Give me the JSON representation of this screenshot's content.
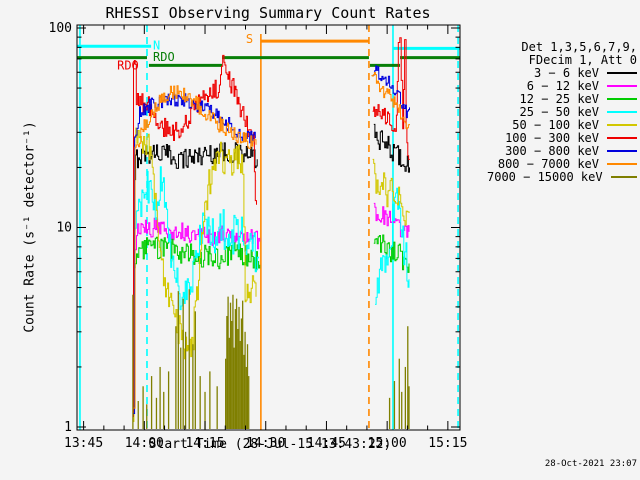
{
  "title": "RHESSI Observing Summary Count Rates",
  "timestamp": "28-Oct-2021 23:07",
  "axes": {
    "x": {
      "label": "Start Time (28-Jul-15 13:43:22)",
      "range_hours": [
        13.7228,
        15.3
      ],
      "ticks": [
        {
          "t": 13.75,
          "label": "13:45"
        },
        {
          "t": 14.0,
          "label": "14:00"
        },
        {
          "t": 14.25,
          "label": "14:15"
        },
        {
          "t": 14.5,
          "label": "14:30"
        },
        {
          "t": 14.75,
          "label": "14:45"
        },
        {
          "t": 15.0,
          "label": "15:00"
        },
        {
          "t": 15.25,
          "label": "15:15"
        }
      ],
      "minor_step_minutes": 5
    },
    "y": {
      "label": "Count Rate (s⁻¹ detector⁻¹)",
      "scale": "log",
      "range": [
        1,
        100
      ],
      "ticks": [
        {
          "v": 1,
          "label": "1"
        },
        {
          "v": 10,
          "label": "10"
        },
        {
          "v": 100,
          "label": "100"
        }
      ]
    }
  },
  "legend": {
    "header1": "Det 1,3,5,6,7,9,",
    "header2": "FDecim 1, Att 0",
    "entries": [
      {
        "label": "3 − 6 keV",
        "color": "#000000"
      },
      {
        "label": "6 − 12 keV",
        "color": "#ff00ff"
      },
      {
        "label": "12 − 25 keV",
        "color": "#00cc00"
      },
      {
        "label": "25 − 50 keV",
        "color": "#00ffff"
      },
      {
        "label": "50 − 100 keV",
        "color": "#d2c700"
      },
      {
        "label": "100 − 300 keV",
        "color": "#ee0000"
      },
      {
        "label": "300 − 800 keV",
        "color": "#0000dd"
      },
      {
        "label": "800 − 7000 keV",
        "color": "#ff8800"
      },
      {
        "label": "7000 − 15000 keV",
        "color": "#7f7f00"
      }
    ]
  },
  "chart_data": {
    "type": "line",
    "x_unit": "decimal_hours",
    "ylog": true,
    "grid": false,
    "series": [
      {
        "name": "3 − 6 keV",
        "color": "#000000",
        "jitter": 0.055,
        "segments": [
          [
            [
              13.955,
              1.5
            ],
            [
              13.958,
              16
            ],
            [
              13.964,
              22
            ],
            [
              13.98,
              23
            ],
            [
              14.05,
              24
            ],
            [
              14.15,
              22
            ],
            [
              14.22,
              23
            ],
            [
              14.32,
              24
            ],
            [
              14.42,
              23
            ],
            [
              14.465,
              22
            ]
          ],
          [
            [
              14.945,
              29
            ],
            [
              14.99,
              26
            ],
            [
              15.03,
              24
            ],
            [
              15.06,
              22
            ],
            [
              15.092,
              20
            ]
          ]
        ]
      },
      {
        "name": "6 − 12 keV",
        "color": "#ff00ff",
        "jitter": 0.05,
        "segments": [
          [
            [
              13.952,
              1.3
            ],
            [
              13.957,
              7.5
            ],
            [
              13.968,
              9.5
            ],
            [
              14.05,
              10
            ],
            [
              14.15,
              9.5
            ],
            [
              14.28,
              9
            ],
            [
              14.4,
              9.5
            ],
            [
              14.475,
              8.5
            ]
          ],
          [
            [
              14.945,
              12
            ],
            [
              15.0,
              11
            ],
            [
              15.05,
              10
            ],
            [
              15.09,
              9.5
            ]
          ]
        ]
      },
      {
        "name": "12 − 25 keV",
        "color": "#00cc00",
        "jitter": 0.06,
        "segments": [
          [
            [
              13.952,
              1.2
            ],
            [
              13.957,
              6
            ],
            [
              13.968,
              7.5
            ],
            [
              14.05,
              8
            ],
            [
              14.15,
              7.5
            ],
            [
              14.28,
              7
            ],
            [
              14.4,
              7.5
            ],
            [
              14.475,
              6.5
            ]
          ],
          [
            [
              14.945,
              8.5
            ],
            [
              15.0,
              7.8
            ],
            [
              15.05,
              7.2
            ],
            [
              15.09,
              6.6
            ]
          ]
        ]
      },
      {
        "name": "25 − 50 keV",
        "color": "#00ffff",
        "jitter": 0.1,
        "segments": [
          [
            [
              13.952,
              1.2
            ],
            [
              13.958,
              9
            ],
            [
              13.99,
              13
            ],
            [
              14.02,
              17
            ],
            [
              14.045,
              11
            ],
            [
              14.07,
              18
            ],
            [
              14.1,
              9
            ],
            [
              14.13,
              5.5
            ],
            [
              14.16,
              4.2
            ],
            [
              14.19,
              5
            ],
            [
              14.21,
              8
            ],
            [
              14.24,
              10
            ],
            [
              14.28,
              9
            ],
            [
              14.32,
              10
            ],
            [
              14.36,
              9
            ],
            [
              14.4,
              10
            ],
            [
              14.44,
              8
            ],
            [
              14.47,
              7
            ]
          ],
          [
            [
              14.95,
              5
            ],
            [
              15.0,
              7
            ],
            [
              15.035,
              14
            ],
            [
              15.06,
              9
            ],
            [
              15.09,
              5.5
            ]
          ]
        ]
      },
      {
        "name": "50 − 100 keV",
        "color": "#d2c700",
        "jitter": 0.09,
        "segments": [
          [
            [
              13.953,
              1.3
            ],
            [
              13.957,
              21
            ],
            [
              13.965,
              26
            ],
            [
              14.02,
              25
            ],
            [
              14.045,
              14
            ],
            [
              14.07,
              6.5
            ],
            [
              14.1,
              4.5
            ],
            [
              14.13,
              3.4
            ],
            [
              14.17,
              2.5
            ],
            [
              14.195,
              2.4
            ],
            [
              14.215,
              4.5
            ],
            [
              14.24,
              9
            ],
            [
              14.27,
              18
            ],
            [
              14.3,
              22
            ],
            [
              14.36,
              22
            ],
            [
              14.405,
              21
            ],
            [
              14.415,
              4
            ],
            [
              14.44,
              5
            ],
            [
              14.46,
              4.5
            ]
          ],
          [
            [
              14.94,
              18
            ],
            [
              14.99,
              16
            ],
            [
              15.03,
              14
            ],
            [
              15.06,
              13
            ],
            [
              15.092,
              12
            ]
          ]
        ]
      },
      {
        "name": "100 − 300 keV",
        "color": "#ee0000",
        "jitter": 0.05,
        "segments": [
          [
            [
              13.954,
              1.2
            ],
            [
              13.9555,
              62
            ],
            [
              13.9625,
              68
            ],
            [
              13.967,
              45
            ],
            [
              13.99,
              42
            ],
            [
              14.03,
              40
            ],
            [
              14.07,
              32
            ],
            [
              14.12,
              30
            ],
            [
              14.16,
              31
            ],
            [
              14.2,
              40
            ],
            [
              14.26,
              46
            ],
            [
              14.305,
              50
            ],
            [
              14.318,
              66
            ],
            [
              14.328,
              68
            ],
            [
              14.34,
              58
            ],
            [
              14.365,
              50
            ],
            [
              14.39,
              42
            ],
            [
              14.41,
              35
            ],
            [
              14.43,
              30
            ],
            [
              14.45,
              27
            ],
            [
              14.457,
              14
            ],
            [
              14.462,
              13
            ]
          ],
          [
            [
              14.94,
              40
            ],
            [
              14.98,
              38
            ],
            [
              15.01,
              34
            ],
            [
              15.038,
              33
            ],
            [
              15.046,
              88
            ],
            [
              15.052,
              95
            ],
            [
              15.058,
              60
            ],
            [
              15.064,
              33
            ],
            [
              15.072,
              80
            ],
            [
              15.078,
              30
            ],
            [
              15.085,
              25
            ],
            [
              15.092,
              22
            ]
          ]
        ]
      },
      {
        "name": "300 − 800 keV",
        "color": "#0000dd",
        "jitter": 0.035,
        "segments": [
          [
            [
              13.9555,
              1.2
            ],
            [
              13.96,
              28
            ],
            [
              13.98,
              38
            ],
            [
              14.02,
              41
            ],
            [
              14.08,
              43
            ],
            [
              14.13,
              44
            ],
            [
              14.18,
              43
            ],
            [
              14.24,
              40
            ],
            [
              14.3,
              37
            ],
            [
              14.33,
              34
            ],
            [
              14.36,
              32
            ],
            [
              14.39,
              30
            ],
            [
              14.42,
              29
            ],
            [
              14.457,
              28
            ]
          ],
          [
            [
              14.94,
              62
            ],
            [
              14.97,
              58
            ],
            [
              15.0,
              54
            ],
            [
              15.02,
              50
            ],
            [
              15.04,
              46
            ],
            [
              15.06,
              42
            ],
            [
              15.075,
              38
            ],
            [
              15.092,
              40
            ]
          ]
        ]
      },
      {
        "name": "800 − 7000 keV",
        "color": "#ff8800",
        "jitter": 0.04,
        "segments": [
          [
            [
              13.956,
              1.2
            ],
            [
              13.962,
              24
            ],
            [
              13.99,
              30
            ],
            [
              14.03,
              38
            ],
            [
              14.08,
              46
            ],
            [
              14.13,
              48
            ],
            [
              14.18,
              46
            ],
            [
              14.23,
              40
            ],
            [
              14.28,
              35
            ],
            [
              14.32,
              32
            ],
            [
              14.36,
              30
            ],
            [
              14.4,
              28
            ],
            [
              14.43,
              27
            ],
            [
              14.46,
              26
            ]
          ],
          [
            [
              14.935,
              58
            ],
            [
              14.96,
              54
            ],
            [
              14.99,
              48
            ],
            [
              15.02,
              43
            ],
            [
              15.05,
              38
            ],
            [
              15.07,
              34
            ],
            [
              15.092,
              33
            ]
          ]
        ]
      },
      {
        "name": "7000 − 15000 keV",
        "color": "#7f7f00",
        "mode": "spikes",
        "spikes": [
          [
            13.953,
            4.6
          ],
          [
            13.975,
            1.35
          ],
          [
            13.995,
            1.6
          ],
          [
            14.01,
            1.3
          ],
          [
            14.03,
            1.8
          ],
          [
            14.05,
            1.4
          ],
          [
            14.065,
            2.0
          ],
          [
            14.08,
            1.5
          ],
          [
            14.1,
            1.9
          ],
          [
            14.13,
            3.2
          ],
          [
            14.14,
            4.8
          ],
          [
            14.15,
            2.5
          ],
          [
            14.16,
            4.4
          ],
          [
            14.17,
            3.0
          ],
          [
            14.185,
            4.9
          ],
          [
            14.2,
            2.6
          ],
          [
            14.21,
            3.8
          ],
          [
            14.23,
            1.8
          ],
          [
            14.25,
            1.5
          ],
          [
            14.27,
            1.9
          ],
          [
            14.3,
            1.6
          ],
          [
            14.335,
            2.2
          ],
          [
            14.34,
            3.6
          ],
          [
            14.345,
            4.5
          ],
          [
            14.35,
            2.8
          ],
          [
            14.355,
            4.2
          ],
          [
            14.36,
            3.4
          ],
          [
            14.365,
            4.6
          ],
          [
            14.37,
            2.5
          ],
          [
            14.375,
            3.9
          ],
          [
            14.38,
            4.4
          ],
          [
            14.385,
            3.1
          ],
          [
            14.39,
            4.0
          ],
          [
            14.395,
            2.7
          ],
          [
            14.4,
            3.5
          ],
          [
            14.405,
            4.3
          ],
          [
            14.41,
            2.3
          ],
          [
            14.415,
            3.0
          ],
          [
            14.42,
            2.0
          ],
          [
            14.425,
            2.6
          ],
          [
            14.43,
            1.8
          ],
          [
            15.01,
            1.4
          ],
          [
            15.03,
            1.7
          ],
          [
            15.05,
            2.2
          ],
          [
            15.06,
            1.5
          ],
          [
            15.075,
            2.0
          ],
          [
            15.085,
            3.2
          ],
          [
            15.09,
            1.6
          ]
        ]
      }
    ],
    "flags": {
      "night": {
        "color": "#00ffff",
        "verticals": [
          {
            "t": 13.735,
            "style": "solid"
          },
          {
            "t": 14.011,
            "style": "dashed"
          },
          {
            "t": 15.024,
            "style": "solid"
          },
          {
            "t": 15.292,
            "style": "dashed"
          }
        ],
        "horizontals": [
          {
            "t0": 13.7228,
            "t1": 14.028,
            "v": 81
          },
          {
            "t0": 15.024,
            "t1": 15.3,
            "v": 79
          }
        ],
        "label": {
          "text": "N",
          "t": 14.036,
          "v": 78
        }
      },
      "saa": {
        "color": "#ff8800",
        "verticals": [
          {
            "t": 14.48,
            "style": "solid"
          },
          {
            "t": 14.925,
            "style": "dashed"
          }
        ],
        "horizontals": [
          {
            "t0": 14.48,
            "t1": 14.925,
            "v": 86
          }
        ],
        "label": {
          "text": "S",
          "t": 14.418,
          "v": 84
        }
      },
      "rdo": {
        "color": "#087f08",
        "horizontals": [
          {
            "t0": 13.7228,
            "t1": 14.011,
            "v": 71
          },
          {
            "t0": 14.019,
            "t1": 14.32,
            "v": 65
          },
          {
            "t0": 14.32,
            "t1": 14.925,
            "v": 71
          },
          {
            "t0": 14.929,
            "t1": 15.053,
            "v": 65
          },
          {
            "t0": 15.053,
            "t1": 15.3,
            "v": 71
          }
        ],
        "labels": [
          {
            "text": "RDO",
            "t": 14.036,
            "v": 68.5,
            "color": "#087f08"
          },
          {
            "text": "RDO",
            "t": 13.888,
            "v": 62,
            "color": "#ee0000"
          }
        ]
      }
    }
  }
}
